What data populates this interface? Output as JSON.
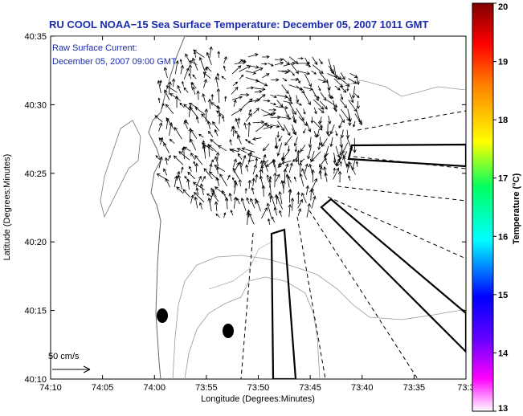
{
  "chart_data": {
    "type": "quiver-map",
    "title": "RU COOL  NOAA−15  Sea Surface Temperature:  December 05, 2007 1011 GMT",
    "annotations": [
      "Raw Surface Current:",
      "December 05, 2007 09:00 GMT"
    ],
    "xlabel": "Longitude (Degrees:Minutes)",
    "ylabel": "Latitude (Degrees:Minutes)",
    "x_ticks": [
      "74:10",
      "74:05",
      "74:00",
      "73:55",
      "73:50",
      "73:45",
      "73:40",
      "73:35",
      "73:3"
    ],
    "y_ticks": [
      "40:35",
      "40:30",
      "40:25",
      "40:20",
      "40:15",
      "40:10"
    ],
    "xlim": [
      "74:10",
      "73:30"
    ],
    "ylim": [
      "40:10",
      "40:35"
    ],
    "scale_label": "50 cm/s",
    "colorbar": {
      "label": "Temperature (°C)",
      "range": [
        13,
        20
      ],
      "ticks": [
        "20",
        "19",
        "18",
        "17",
        "16",
        "15",
        "14",
        "13"
      ],
      "colors": [
        "#ff00ff",
        "#0000ff",
        "#00ffff",
        "#00ff00",
        "#ffff00",
        "#ff8000",
        "#ff0000",
        "#800000"
      ]
    }
  }
}
